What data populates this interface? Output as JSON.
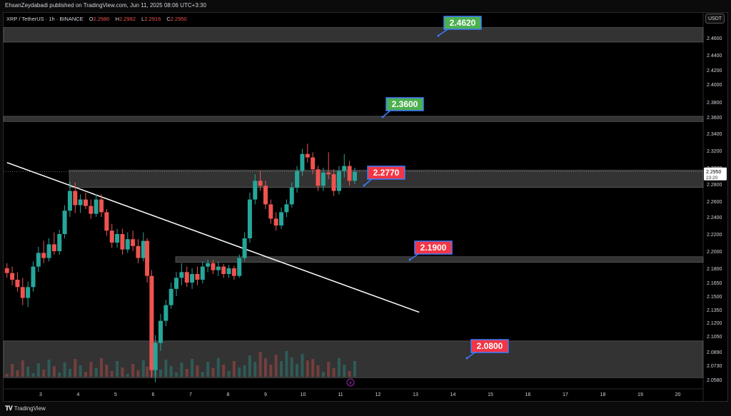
{
  "publisher_line": "EhsanZeydabadi published on TradingView.com, Jun 11, 2025 08:06 UTC+3:30",
  "legend": {
    "symbol": "XRP / TetherUS · 1h · BINANCE",
    "o_label": "O",
    "o_value": "2.2980",
    "h_label": "H",
    "h_value": "2.2982",
    "l_label": "L",
    "l_value": "2.2916",
    "c_label": "C",
    "c_value": "2.2950"
  },
  "currency": "USDT",
  "current_price": "2.2950",
  "countdown": "23:20",
  "footer_brand": "TradingView",
  "colors": {
    "up": "#26a69a",
    "down": "#ef5350",
    "zone": "#5d5d5d",
    "label_green": "#4caf50",
    "label_red": "#f23645",
    "trendline": "#ffffff"
  },
  "chart_data": {
    "type": "candlestick",
    "symbol": "XRP / TetherUS",
    "interval": "1h",
    "exchange": "BINANCE",
    "y_ticks": [
      "2.4600",
      "2.4400",
      "2.4200",
      "2.4000",
      "2.3800",
      "2.3600",
      "2.3400",
      "2.3200",
      "2.3000",
      "2.2800",
      "2.2600",
      "2.2400",
      "2.2200",
      "2.2000",
      "2.1800",
      "2.1650",
      "2.1500",
      "2.1350",
      "2.1200",
      "2.1050",
      "2.0890",
      "2.0730",
      "2.0580"
    ],
    "x_ticks": [
      "3",
      "4",
      "5",
      "6",
      "7",
      "8",
      "9",
      "10",
      "11",
      "12",
      "13",
      "14",
      "15",
      "16",
      "17",
      "18",
      "19",
      "20"
    ],
    "zones": [
      {
        "name": "resistance-2.4620",
        "top": 2.472,
        "bottom": 2.455
      },
      {
        "name": "resistance-2.3600",
        "top": 2.361,
        "bottom": 2.3545
      },
      {
        "name": "zone-2.2770",
        "top": 2.297,
        "bottom": 2.276
      },
      {
        "name": "support-2.1900",
        "top": 2.1935,
        "bottom": 2.187
      },
      {
        "name": "support-2.0800",
        "top": 2.1,
        "bottom": 2.06
      }
    ],
    "labels": [
      {
        "text": "2.4620",
        "color": "green"
      },
      {
        "text": "2.3600",
        "color": "green"
      },
      {
        "text": "2.2770",
        "color": "red"
      },
      {
        "text": "2.1900",
        "color": "red"
      },
      {
        "text": "2.0800",
        "color": "red"
      }
    ],
    "trendline": {
      "start": {
        "day": 2.1,
        "price": 2.306
      },
      "end": {
        "day": 13.1,
        "price": 2.132
      }
    },
    "candles": [
      {
        "d": 2.1,
        "o": 2.18,
        "h": 2.186,
        "l": 2.17,
        "c": 2.175
      },
      {
        "d": 2.24,
        "o": 2.175,
        "h": 2.182,
        "l": 2.162,
        "c": 2.168
      },
      {
        "d": 2.38,
        "o": 2.168,
        "h": 2.176,
        "l": 2.155,
        "c": 2.16
      },
      {
        "d": 2.52,
        "o": 2.16,
        "h": 2.17,
        "l": 2.14,
        "c": 2.148
      },
      {
        "d": 2.66,
        "o": 2.148,
        "h": 2.166,
        "l": 2.138,
        "c": 2.16
      },
      {
        "d": 2.8,
        "o": 2.16,
        "h": 2.188,
        "l": 2.155,
        "c": 2.182
      },
      {
        "d": 2.94,
        "o": 2.182,
        "h": 2.205,
        "l": 2.176,
        "c": 2.198
      },
      {
        "d": 3.08,
        "o": 2.198,
        "h": 2.212,
        "l": 2.186,
        "c": 2.192
      },
      {
        "d": 3.22,
        "o": 2.192,
        "h": 2.215,
        "l": 2.188,
        "c": 2.208
      },
      {
        "d": 3.36,
        "o": 2.208,
        "h": 2.222,
        "l": 2.196,
        "c": 2.2
      },
      {
        "d": 3.5,
        "o": 2.2,
        "h": 2.225,
        "l": 2.196,
        "c": 2.22
      },
      {
        "d": 3.64,
        "o": 2.22,
        "h": 2.255,
        "l": 2.215,
        "c": 2.248
      },
      {
        "d": 3.78,
        "o": 2.248,
        "h": 2.283,
        "l": 2.24,
        "c": 2.272
      },
      {
        "d": 3.92,
        "o": 2.272,
        "h": 2.282,
        "l": 2.245,
        "c": 2.255
      },
      {
        "d": 4.06,
        "o": 2.255,
        "h": 2.268,
        "l": 2.245,
        "c": 2.262
      },
      {
        "d": 4.2,
        "o": 2.262,
        "h": 2.27,
        "l": 2.25,
        "c": 2.254
      },
      {
        "d": 4.34,
        "o": 2.254,
        "h": 2.262,
        "l": 2.238,
        "c": 2.244
      },
      {
        "d": 4.48,
        "o": 2.244,
        "h": 2.268,
        "l": 2.24,
        "c": 2.262
      },
      {
        "d": 4.62,
        "o": 2.262,
        "h": 2.268,
        "l": 2.24,
        "c": 2.246
      },
      {
        "d": 4.76,
        "o": 2.246,
        "h": 2.25,
        "l": 2.218,
        "c": 2.224
      },
      {
        "d": 4.9,
        "o": 2.224,
        "h": 2.232,
        "l": 2.204,
        "c": 2.21
      },
      {
        "d": 5.04,
        "o": 2.21,
        "h": 2.226,
        "l": 2.204,
        "c": 2.22
      },
      {
        "d": 5.18,
        "o": 2.22,
        "h": 2.226,
        "l": 2.196,
        "c": 2.202
      },
      {
        "d": 5.32,
        "o": 2.202,
        "h": 2.222,
        "l": 2.198,
        "c": 2.214
      },
      {
        "d": 5.46,
        "o": 2.214,
        "h": 2.224,
        "l": 2.2,
        "c": 2.206
      },
      {
        "d": 5.6,
        "o": 2.206,
        "h": 2.214,
        "l": 2.186,
        "c": 2.192
      },
      {
        "d": 5.74,
        "o": 2.192,
        "h": 2.222,
        "l": 2.188,
        "c": 2.212
      },
      {
        "d": 5.84,
        "o": 2.212,
        "h": 2.215,
        "l": 2.165,
        "c": 2.172
      },
      {
        "d": 5.96,
        "o": 2.172,
        "h": 2.178,
        "l": 2.06,
        "c": 2.068
      },
      {
        "d": 6.06,
        "o": 2.068,
        "h": 2.106,
        "l": 2.055,
        "c": 2.098
      },
      {
        "d": 6.2,
        "o": 2.098,
        "h": 2.13,
        "l": 2.09,
        "c": 2.122
      },
      {
        "d": 6.34,
        "o": 2.122,
        "h": 2.146,
        "l": 2.116,
        "c": 2.14
      },
      {
        "d": 6.48,
        "o": 2.14,
        "h": 2.165,
        "l": 2.136,
        "c": 2.158
      },
      {
        "d": 6.62,
        "o": 2.158,
        "h": 2.176,
        "l": 2.15,
        "c": 2.17
      },
      {
        "d": 6.76,
        "o": 2.17,
        "h": 2.186,
        "l": 2.162,
        "c": 2.176
      },
      {
        "d": 6.9,
        "o": 2.176,
        "h": 2.182,
        "l": 2.16,
        "c": 2.165
      },
      {
        "d": 7.04,
        "o": 2.165,
        "h": 2.18,
        "l": 2.158,
        "c": 2.174
      },
      {
        "d": 7.18,
        "o": 2.174,
        "h": 2.182,
        "l": 2.162,
        "c": 2.168
      },
      {
        "d": 7.32,
        "o": 2.168,
        "h": 2.188,
        "l": 2.164,
        "c": 2.182
      },
      {
        "d": 7.46,
        "o": 2.182,
        "h": 2.19,
        "l": 2.176,
        "c": 2.186
      },
      {
        "d": 7.6,
        "o": 2.186,
        "h": 2.19,
        "l": 2.174,
        "c": 2.178
      },
      {
        "d": 7.74,
        "o": 2.178,
        "h": 2.188,
        "l": 2.172,
        "c": 2.182
      },
      {
        "d": 7.88,
        "o": 2.182,
        "h": 2.185,
        "l": 2.17,
        "c": 2.174
      },
      {
        "d": 8.02,
        "o": 2.174,
        "h": 2.184,
        "l": 2.17,
        "c": 2.18
      },
      {
        "d": 8.16,
        "o": 2.18,
        "h": 2.183,
        "l": 2.168,
        "c": 2.172
      },
      {
        "d": 8.3,
        "o": 2.172,
        "h": 2.196,
        "l": 2.17,
        "c": 2.192
      },
      {
        "d": 8.44,
        "o": 2.192,
        "h": 2.222,
        "l": 2.188,
        "c": 2.215
      },
      {
        "d": 8.58,
        "o": 2.215,
        "h": 2.27,
        "l": 2.21,
        "c": 2.262
      },
      {
        "d": 8.72,
        "o": 2.262,
        "h": 2.292,
        "l": 2.256,
        "c": 2.284
      },
      {
        "d": 8.86,
        "o": 2.284,
        "h": 2.296,
        "l": 2.272,
        "c": 2.278
      },
      {
        "d": 9.0,
        "o": 2.278,
        "h": 2.284,
        "l": 2.25,
        "c": 2.256
      },
      {
        "d": 9.14,
        "o": 2.256,
        "h": 2.262,
        "l": 2.232,
        "c": 2.238
      },
      {
        "d": 9.28,
        "o": 2.238,
        "h": 2.246,
        "l": 2.224,
        "c": 2.23
      },
      {
        "d": 9.42,
        "o": 2.23,
        "h": 2.252,
        "l": 2.226,
        "c": 2.246
      },
      {
        "d": 9.56,
        "o": 2.246,
        "h": 2.262,
        "l": 2.24,
        "c": 2.256
      },
      {
        "d": 9.7,
        "o": 2.256,
        "h": 2.282,
        "l": 2.252,
        "c": 2.276
      },
      {
        "d": 9.84,
        "o": 2.276,
        "h": 2.302,
        "l": 2.27,
        "c": 2.296
      },
      {
        "d": 9.98,
        "o": 2.296,
        "h": 2.322,
        "l": 2.29,
        "c": 2.316
      },
      {
        "d": 10.12,
        "o": 2.316,
        "h": 2.328,
        "l": 2.306,
        "c": 2.312
      },
      {
        "d": 10.26,
        "o": 2.312,
        "h": 2.318,
        "l": 2.292,
        "c": 2.298
      },
      {
        "d": 10.4,
        "o": 2.298,
        "h": 2.302,
        "l": 2.272,
        "c": 2.278
      },
      {
        "d": 10.54,
        "o": 2.278,
        "h": 2.3,
        "l": 2.272,
        "c": 2.294
      },
      {
        "d": 10.68,
        "o": 2.294,
        "h": 2.318,
        "l": 2.286,
        "c": 2.292
      },
      {
        "d": 10.82,
        "o": 2.292,
        "h": 2.298,
        "l": 2.266,
        "c": 2.272
      },
      {
        "d": 10.96,
        "o": 2.272,
        "h": 2.302,
        "l": 2.268,
        "c": 2.296
      },
      {
        "d": 11.1,
        "o": 2.296,
        "h": 2.316,
        "l": 2.288,
        "c": 2.302
      },
      {
        "d": 11.24,
        "o": 2.302,
        "h": 2.308,
        "l": 2.278,
        "c": 2.284
      },
      {
        "d": 11.38,
        "o": 2.284,
        "h": 2.3,
        "l": 2.28,
        "c": 2.295
      }
    ]
  }
}
